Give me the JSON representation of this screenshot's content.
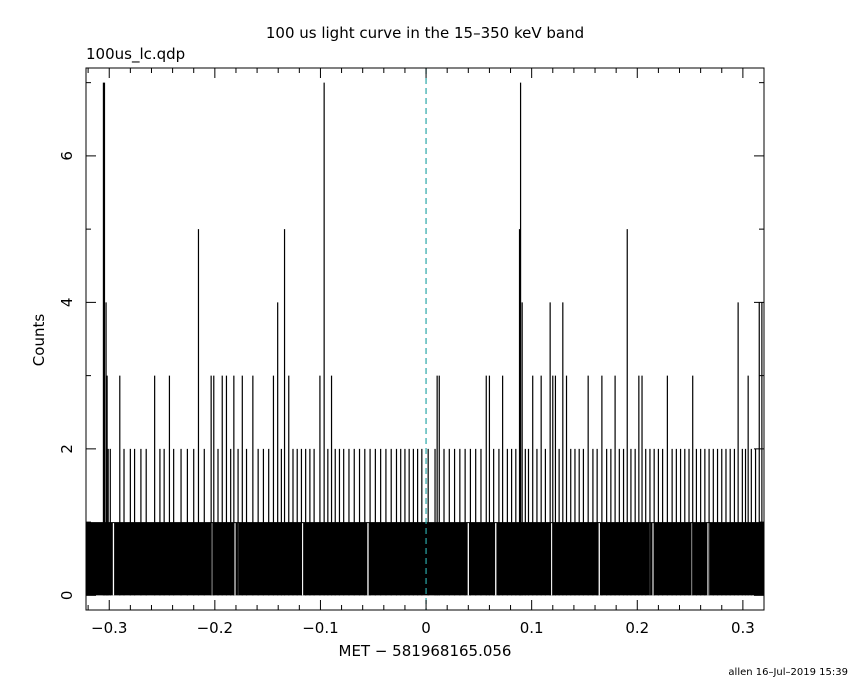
{
  "chart_data": {
    "type": "bar",
    "title": "100 us light curve in the 15–350 keV band",
    "file_label": "100us_lc.qdp",
    "xlabel": "MET − 581968165.056",
    "ylabel": "Counts",
    "footer": "allen 16–Jul–2019 15:39",
    "xlim": [
      -0.322,
      0.32
    ],
    "ylim": [
      -0.2,
      7.2
    ],
    "x_ticks": [
      -0.3,
      -0.2,
      -0.1,
      0,
      0.1,
      0.2,
      0.3
    ],
    "x_tick_labels": [
      "−0.3",
      "−0.2",
      "−0.1",
      "0",
      "0.1",
      "0.2",
      "0.3"
    ],
    "y_ticks": [
      0,
      2,
      4,
      6
    ],
    "y_tick_labels": [
      "0",
      "2",
      "4",
      "6"
    ],
    "bin_width": 0.0001,
    "baseline_counts": 1,
    "zero_count_bins": [
      -0.296,
      -0.203,
      -0.181,
      -0.178,
      -0.117,
      -0.055,
      0.04,
      0.066,
      0.119,
      0.164,
      0.212,
      0.215,
      0.252,
      0.267,
      0.268
    ],
    "peaks": [
      {
        "x": -0.3055,
        "counts": 7
      },
      {
        "x": -0.3045,
        "counts": 7
      },
      {
        "x": -0.303,
        "counts": 4
      },
      {
        "x": -0.302,
        "counts": 3
      },
      {
        "x": -0.301,
        "counts": 2
      },
      {
        "x": -0.299,
        "counts": 2
      },
      {
        "x": -0.29,
        "counts": 3
      },
      {
        "x": -0.286,
        "counts": 2
      },
      {
        "x": -0.28,
        "counts": 2
      },
      {
        "x": -0.276,
        "counts": 2
      },
      {
        "x": -0.27,
        "counts": 2
      },
      {
        "x": -0.265,
        "counts": 2
      },
      {
        "x": -0.257,
        "counts": 3
      },
      {
        "x": -0.252,
        "counts": 2
      },
      {
        "x": -0.248,
        "counts": 2
      },
      {
        "x": -0.243,
        "counts": 3
      },
      {
        "x": -0.239,
        "counts": 2
      },
      {
        "x": -0.232,
        "counts": 2
      },
      {
        "x": -0.226,
        "counts": 2
      },
      {
        "x": -0.22,
        "counts": 2
      },
      {
        "x": -0.2155,
        "counts": 5
      },
      {
        "x": -0.21,
        "counts": 2
      },
      {
        "x": -0.2035,
        "counts": 3
      },
      {
        "x": -0.201,
        "counts": 3
      },
      {
        "x": -0.197,
        "counts": 2
      },
      {
        "x": -0.193,
        "counts": 3
      },
      {
        "x": -0.189,
        "counts": 3
      },
      {
        "x": -0.185,
        "counts": 2
      },
      {
        "x": -0.182,
        "counts": 3
      },
      {
        "x": -0.178,
        "counts": 2
      },
      {
        "x": -0.174,
        "counts": 3
      },
      {
        "x": -0.17,
        "counts": 2
      },
      {
        "x": -0.164,
        "counts": 3
      },
      {
        "x": -0.159,
        "counts": 2
      },
      {
        "x": -0.154,
        "counts": 2
      },
      {
        "x": -0.149,
        "counts": 2
      },
      {
        "x": -0.1445,
        "counts": 3
      },
      {
        "x": -0.1405,
        "counts": 4
      },
      {
        "x": -0.137,
        "counts": 2
      },
      {
        "x": -0.134,
        "counts": 5
      },
      {
        "x": -0.13,
        "counts": 3
      },
      {
        "x": -0.126,
        "counts": 2
      },
      {
        "x": -0.122,
        "counts": 2
      },
      {
        "x": -0.118,
        "counts": 2
      },
      {
        "x": -0.114,
        "counts": 2
      },
      {
        "x": -0.11,
        "counts": 2
      },
      {
        "x": -0.106,
        "counts": 2
      },
      {
        "x": -0.1005,
        "counts": 3
      },
      {
        "x": -0.0965,
        "counts": 7
      },
      {
        "x": -0.093,
        "counts": 2
      },
      {
        "x": -0.0895,
        "counts": 3
      },
      {
        "x": -0.086,
        "counts": 2
      },
      {
        "x": -0.082,
        "counts": 2
      },
      {
        "x": -0.078,
        "counts": 2
      },
      {
        "x": -0.073,
        "counts": 2
      },
      {
        "x": -0.068,
        "counts": 2
      },
      {
        "x": -0.063,
        "counts": 2
      },
      {
        "x": -0.058,
        "counts": 2
      },
      {
        "x": -0.053,
        "counts": 2
      },
      {
        "x": -0.048,
        "counts": 2
      },
      {
        "x": -0.043,
        "counts": 2
      },
      {
        "x": -0.038,
        "counts": 2
      },
      {
        "x": -0.033,
        "counts": 2
      },
      {
        "x": -0.028,
        "counts": 2
      },
      {
        "x": -0.024,
        "counts": 2
      },
      {
        "x": -0.02,
        "counts": 2
      },
      {
        "x": -0.016,
        "counts": 2
      },
      {
        "x": -0.012,
        "counts": 2
      },
      {
        "x": -0.008,
        "counts": 2
      },
      {
        "x": -0.004,
        "counts": 2
      },
      {
        "x": 0.002,
        "counts": 2
      },
      {
        "x": 0.0085,
        "counts": 2
      },
      {
        "x": 0.0105,
        "counts": 3
      },
      {
        "x": 0.0125,
        "counts": 3
      },
      {
        "x": 0.017,
        "counts": 2
      },
      {
        "x": 0.022,
        "counts": 2
      },
      {
        "x": 0.027,
        "counts": 2
      },
      {
        "x": 0.032,
        "counts": 2
      },
      {
        "x": 0.037,
        "counts": 2
      },
      {
        "x": 0.042,
        "counts": 2
      },
      {
        "x": 0.047,
        "counts": 2
      },
      {
        "x": 0.052,
        "counts": 2
      },
      {
        "x": 0.057,
        "counts": 3
      },
      {
        "x": 0.06,
        "counts": 3
      },
      {
        "x": 0.064,
        "counts": 2
      },
      {
        "x": 0.069,
        "counts": 2
      },
      {
        "x": 0.0725,
        "counts": 3
      },
      {
        "x": 0.077,
        "counts": 2
      },
      {
        "x": 0.081,
        "counts": 2
      },
      {
        "x": 0.085,
        "counts": 2
      },
      {
        "x": 0.0885,
        "counts": 5
      },
      {
        "x": 0.0895,
        "counts": 7
      },
      {
        "x": 0.091,
        "counts": 4
      },
      {
        "x": 0.094,
        "counts": 2
      },
      {
        "x": 0.097,
        "counts": 2
      },
      {
        "x": 0.101,
        "counts": 3
      },
      {
        "x": 0.105,
        "counts": 2
      },
      {
        "x": 0.109,
        "counts": 3
      },
      {
        "x": 0.113,
        "counts": 2
      },
      {
        "x": 0.1175,
        "counts": 4
      },
      {
        "x": 0.12,
        "counts": 3
      },
      {
        "x": 0.1225,
        "counts": 3
      },
      {
        "x": 0.126,
        "counts": 2
      },
      {
        "x": 0.1295,
        "counts": 4
      },
      {
        "x": 0.133,
        "counts": 3
      },
      {
        "x": 0.137,
        "counts": 2
      },
      {
        "x": 0.141,
        "counts": 2
      },
      {
        "x": 0.145,
        "counts": 2
      },
      {
        "x": 0.149,
        "counts": 2
      },
      {
        "x": 0.1535,
        "counts": 3
      },
      {
        "x": 0.158,
        "counts": 2
      },
      {
        "x": 0.162,
        "counts": 2
      },
      {
        "x": 0.1665,
        "counts": 3
      },
      {
        "x": 0.171,
        "counts": 2
      },
      {
        "x": 0.175,
        "counts": 2
      },
      {
        "x": 0.179,
        "counts": 3
      },
      {
        "x": 0.183,
        "counts": 2
      },
      {
        "x": 0.187,
        "counts": 2
      },
      {
        "x": 0.1905,
        "counts": 5
      },
      {
        "x": 0.194,
        "counts": 2
      },
      {
        "x": 0.198,
        "counts": 2
      },
      {
        "x": 0.2015,
        "counts": 3
      },
      {
        "x": 0.2045,
        "counts": 3
      },
      {
        "x": 0.208,
        "counts": 2
      },
      {
        "x": 0.212,
        "counts": 2
      },
      {
        "x": 0.216,
        "counts": 2
      },
      {
        "x": 0.22,
        "counts": 2
      },
      {
        "x": 0.224,
        "counts": 2
      },
      {
        "x": 0.2285,
        "counts": 3
      },
      {
        "x": 0.233,
        "counts": 2
      },
      {
        "x": 0.237,
        "counts": 2
      },
      {
        "x": 0.241,
        "counts": 2
      },
      {
        "x": 0.245,
        "counts": 2
      },
      {
        "x": 0.249,
        "counts": 2
      },
      {
        "x": 0.2525,
        "counts": 3
      },
      {
        "x": 0.256,
        "counts": 2
      },
      {
        "x": 0.26,
        "counts": 2
      },
      {
        "x": 0.264,
        "counts": 2
      },
      {
        "x": 0.268,
        "counts": 2
      },
      {
        "x": 0.272,
        "counts": 2
      },
      {
        "x": 0.276,
        "counts": 2
      },
      {
        "x": 0.28,
        "counts": 2
      },
      {
        "x": 0.284,
        "counts": 2
      },
      {
        "x": 0.288,
        "counts": 2
      },
      {
        "x": 0.292,
        "counts": 2
      },
      {
        "x": 0.2955,
        "counts": 4
      },
      {
        "x": 0.2995,
        "counts": 2
      },
      {
        "x": 0.3025,
        "counts": 2
      },
      {
        "x": 0.305,
        "counts": 3
      },
      {
        "x": 0.308,
        "counts": 2
      },
      {
        "x": 0.312,
        "counts": 2
      },
      {
        "x": 0.3155,
        "counts": 4
      },
      {
        "x": 0.318,
        "counts": 4
      }
    ],
    "reference_line": {
      "x": 0,
      "style": "dashed",
      "color": "#2aa7a7"
    },
    "grid": false,
    "colors": {
      "bars": "#000000",
      "reference_line": "#2aa7a7"
    }
  }
}
